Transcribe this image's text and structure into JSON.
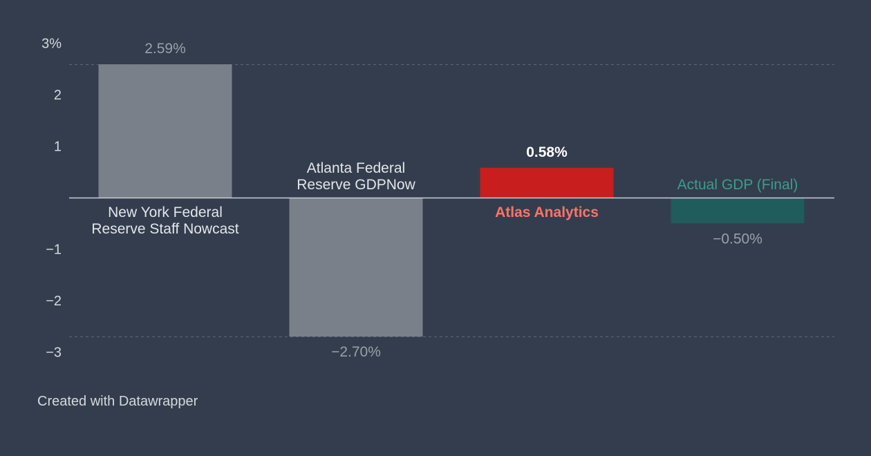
{
  "chart_data": {
    "type": "bar",
    "categories": [
      "New York Federal Reserve Staff Nowcast",
      "Atlanta Federal Reserve GDPNow",
      "Atlas Analytics",
      "Actual GDP (Final)"
    ],
    "values": [
      2.59,
      -2.7,
      0.58,
      -0.5
    ],
    "value_labels": [
      "2.59%",
      "−2.70%",
      "0.58%",
      "−0.50%"
    ],
    "ylim": [
      -3,
      3
    ],
    "yticks": [
      {
        "value": 3,
        "label": "3%"
      },
      {
        "value": 2,
        "label": "2"
      },
      {
        "value": 1,
        "label": "1"
      },
      {
        "value": -1,
        "label": "−1"
      },
      {
        "value": -2,
        "label": "−2"
      },
      {
        "value": -3,
        "label": "−3"
      }
    ],
    "gridlines": [
      2.59,
      -2.7
    ],
    "bar_colors": [
      "#7a808a",
      "#7a808a",
      "#c81e1e",
      "#1f5c5b"
    ],
    "category_label_colors": [
      "#e3e6ea",
      "#e3e6ea",
      "#ff7466",
      "#3d9c8c"
    ],
    "value_label_colors": [
      "#9aa0a9",
      "#9aa0a9",
      "#ffffff",
      "#9aa0a9"
    ],
    "title": "",
    "xlabel": "",
    "ylabel": ""
  },
  "footer": {
    "credit": "Created with Datawrapper"
  }
}
